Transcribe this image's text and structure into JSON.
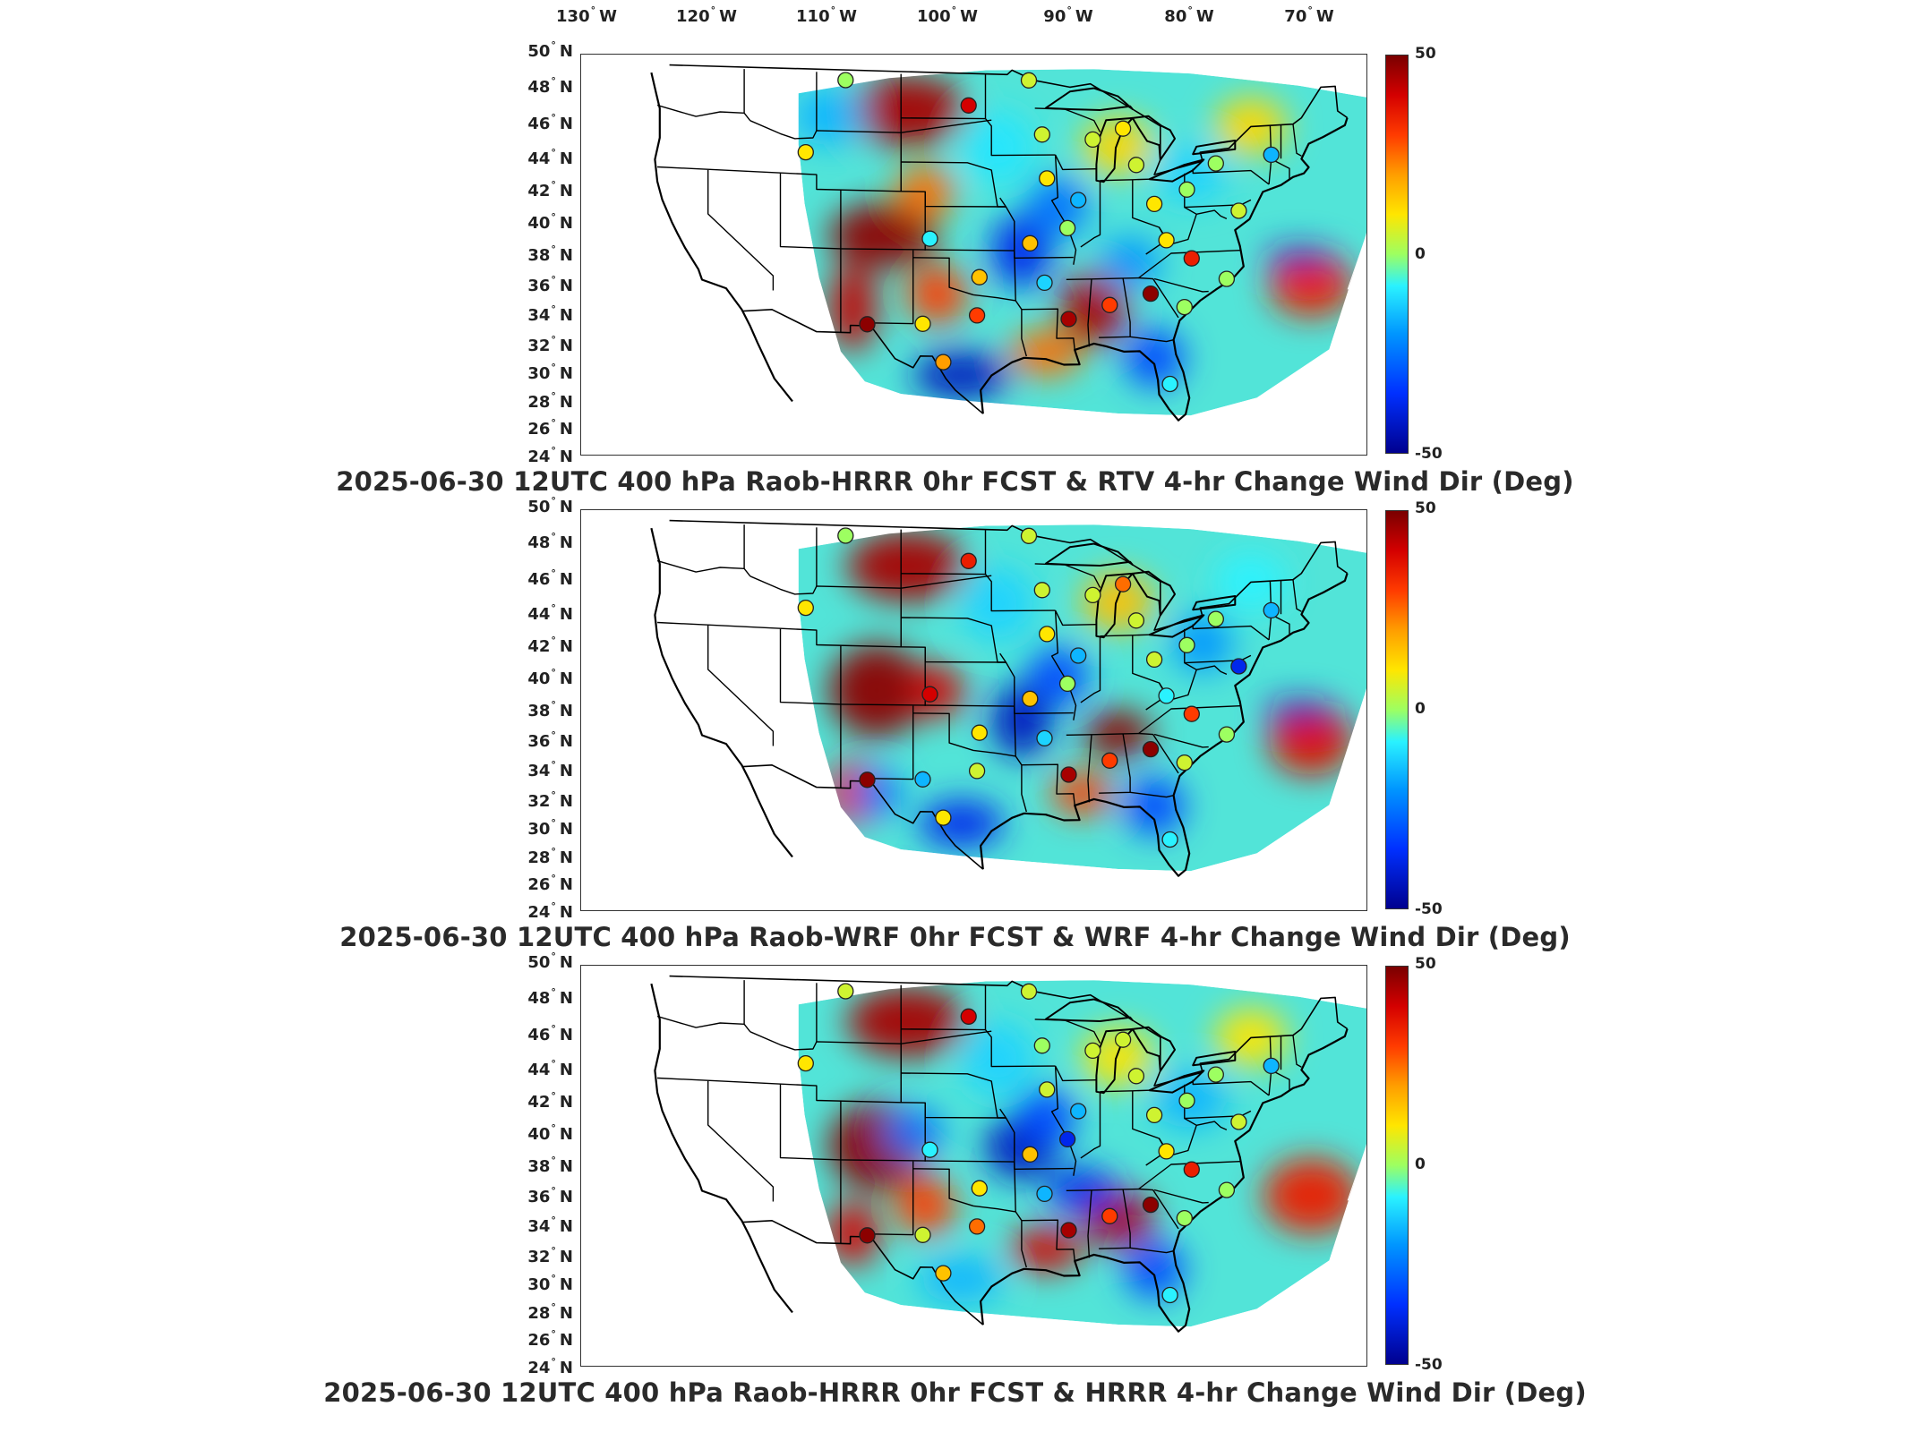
{
  "longitude_labels": [
    "130",
    "120",
    "110",
    "100",
    "90",
    "80",
    "70"
  ],
  "longitude_suffix": "W",
  "latitude_labels": [
    "50",
    "48",
    "46",
    "44",
    "42",
    "40",
    "38",
    "36",
    "34",
    "32",
    "30",
    "28",
    "26",
    "24"
  ],
  "latitude_suffix": "N",
  "degree_symbol": "°",
  "colorbar": {
    "max_label": "50",
    "mid_label": "0",
    "min_label": "-50"
  },
  "panels": [
    {
      "title": "2025-06-30 12UTC 400 hPa Raob-HRRR 0hr FCST & RTV 4-hr Change Wind Dir (Deg)"
    },
    {
      "title": "2025-06-30 12UTC 400 hPa Raob-WRF 0hr FCST & WRF 4-hr Change Wind Dir (Deg)"
    },
    {
      "title": "2025-06-30 12UTC 400 hPa Raob-HRRR 0hr FCST & HRRR 4-hr Change Wind Dir (Deg)"
    }
  ],
  "stations": [
    {
      "lon": -108.6,
      "lat": 48.5,
      "values": [
        0,
        0,
        5
      ]
    },
    {
      "lon": -98.4,
      "lat": 46.9,
      "values": [
        40,
        35,
        40
      ]
    },
    {
      "lon": -93.4,
      "lat": 48.6,
      "values": [
        5,
        5,
        5
      ]
    },
    {
      "lon": -111.9,
      "lat": 43.5,
      "values": [
        10,
        10,
        10
      ]
    },
    {
      "lon": -92.3,
      "lat": 44.9,
      "values": [
        5,
        5,
        0
      ]
    },
    {
      "lon": -85.6,
      "lat": 45.2,
      "values": [
        10,
        25,
        5
      ]
    },
    {
      "lon": -88.1,
      "lat": 44.5,
      "values": [
        5,
        5,
        5
      ]
    },
    {
      "lon": -84.5,
      "lat": 42.7,
      "values": [
        5,
        5,
        5
      ]
    },
    {
      "lon": -77.9,
      "lat": 42.6,
      "values": [
        0,
        0,
        0
      ]
    },
    {
      "lon": -73.3,
      "lat": 43.0,
      "values": [
        -20,
        -20,
        -20
      ]
    },
    {
      "lon": -91.9,
      "lat": 41.9,
      "values": [
        10,
        10,
        5
      ]
    },
    {
      "lon": -89.3,
      "lat": 40.4,
      "values": [
        -20,
        -20,
        -20
      ]
    },
    {
      "lon": -83.0,
      "lat": 40.0,
      "values": [
        10,
        5,
        5
      ]
    },
    {
      "lon": -80.3,
      "lat": 40.9,
      "values": [
        0,
        0,
        0
      ]
    },
    {
      "lon": -76.0,
      "lat": 39.3,
      "values": [
        5,
        -40,
        5
      ]
    },
    {
      "lon": -101.6,
      "lat": 37.8,
      "values": [
        -10,
        40,
        -10
      ]
    },
    {
      "lon": -93.3,
      "lat": 37.5,
      "values": [
        15,
        15,
        15
      ]
    },
    {
      "lon": -90.2,
      "lat": 38.5,
      "values": [
        0,
        0,
        -40
      ]
    },
    {
      "lon": -82.0,
      "lat": 37.5,
      "values": [
        10,
        -10,
        10
      ]
    },
    {
      "lon": -79.9,
      "lat": 36.2,
      "values": [
        35,
        30,
        35
      ]
    },
    {
      "lon": -97.5,
      "lat": 35.2,
      "values": [
        15,
        10,
        10
      ]
    },
    {
      "lon": -92.1,
      "lat": 34.8,
      "values": [
        -15,
        -15,
        -20
      ]
    },
    {
      "lon": -77.0,
      "lat": 34.7,
      "values": [
        0,
        0,
        0
      ]
    },
    {
      "lon": -97.7,
      "lat": 32.6,
      "values": [
        30,
        5,
        25
      ]
    },
    {
      "lon": -90.1,
      "lat": 32.3,
      "values": [
        45,
        45,
        45
      ]
    },
    {
      "lon": -86.7,
      "lat": 33.2,
      "values": [
        30,
        30,
        30
      ]
    },
    {
      "lon": -83.3,
      "lat": 33.9,
      "values": [
        48,
        48,
        48
      ]
    },
    {
      "lon": -80.5,
      "lat": 32.9,
      "values": [
        0,
        5,
        0
      ]
    },
    {
      "lon": -106.8,
      "lat": 31.9,
      "values": [
        48,
        48,
        48
      ]
    },
    {
      "lon": -102.2,
      "lat": 32.0,
      "values": [
        10,
        -20,
        5
      ]
    },
    {
      "lon": -100.5,
      "lat": 29.4,
      "values": [
        20,
        10,
        15
      ]
    },
    {
      "lon": -81.7,
      "lat": 27.7,
      "values": [
        -10,
        -10,
        -10
      ]
    }
  ]
}
